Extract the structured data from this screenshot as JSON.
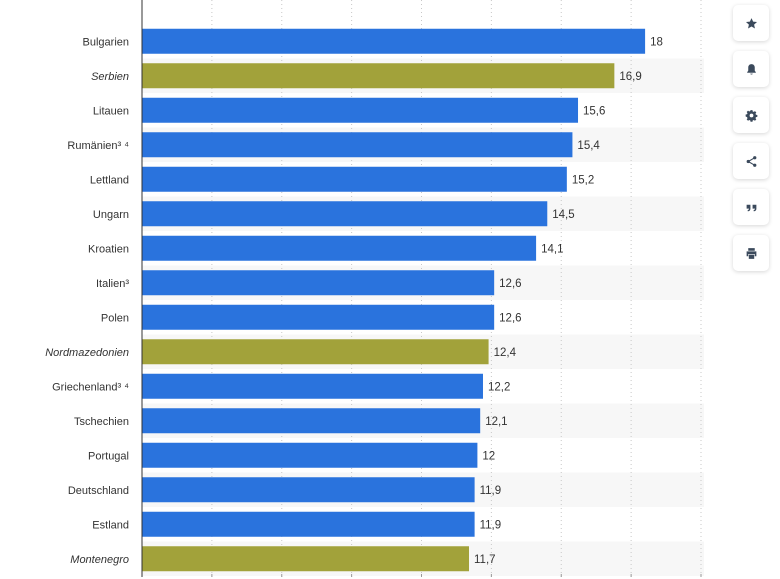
{
  "chart_data": {
    "type": "bar",
    "orientation": "horizontal",
    "title": "",
    "xlabel": "",
    "ylabel": "",
    "xlim": [
      0,
      22
    ],
    "grid": true,
    "colors": {
      "default": "#2a73dd",
      "highlight": "#a2a23a"
    },
    "categories": [
      "Bulgarien",
      "Serbien",
      "Litauen",
      "Rumänien³ ⁴",
      "Lettland",
      "Ungarn",
      "Kroatien",
      "Italien³",
      "Polen",
      "Nordmazedonien",
      "Griechenland³ ⁴",
      "Tschechien",
      "Portugal",
      "Deutschland",
      "Estland",
      "Montenegro"
    ],
    "values": [
      18,
      16.9,
      15.6,
      15.4,
      15.2,
      14.5,
      14.1,
      12.6,
      12.6,
      12.4,
      12.2,
      12.1,
      12,
      11.9,
      11.9,
      11.7
    ],
    "value_labels": [
      "18",
      "16,9",
      "15,6",
      "15,4",
      "15,2",
      "14,5",
      "14,1",
      "12,6",
      "12,6",
      "12,4",
      "12,2",
      "12,1",
      "12",
      "11,9",
      "11,9",
      "11,7"
    ],
    "highlighted": [
      false,
      true,
      false,
      false,
      false,
      false,
      false,
      false,
      false,
      true,
      false,
      false,
      false,
      false,
      false,
      true
    ]
  },
  "toolbar": [
    {
      "name": "favorite-button",
      "icon": "star-icon"
    },
    {
      "name": "notification-button",
      "icon": "bell-icon"
    },
    {
      "name": "settings-button",
      "icon": "gear-icon"
    },
    {
      "name": "share-button",
      "icon": "share-icon"
    },
    {
      "name": "cite-button",
      "icon": "quote-icon"
    },
    {
      "name": "print-button",
      "icon": "print-icon"
    }
  ]
}
